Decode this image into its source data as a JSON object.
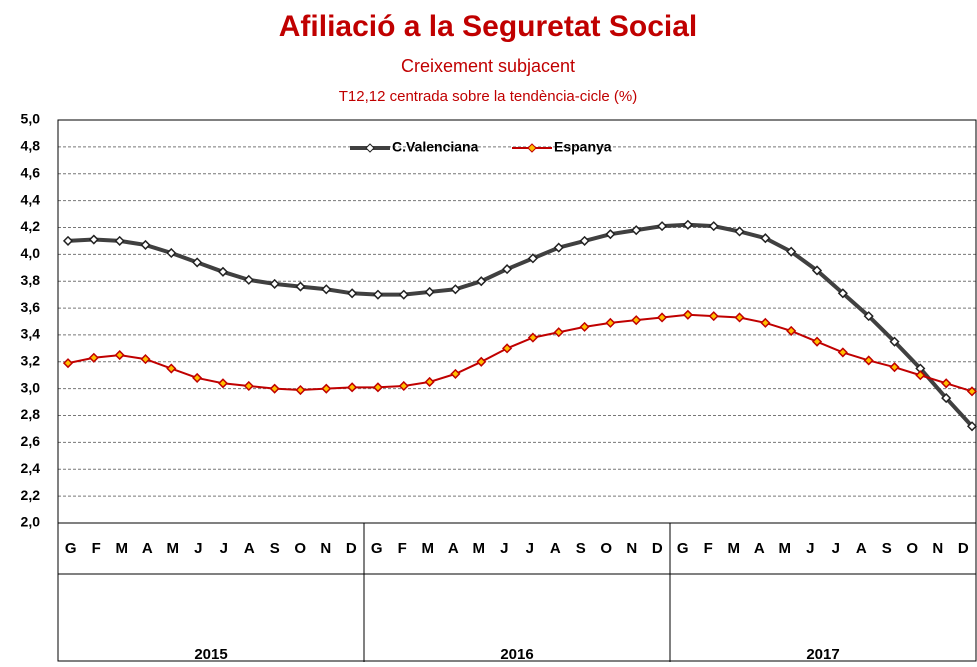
{
  "chart_data": {
    "type": "line",
    "title": "Afiliació a la Seguretat Social",
    "subtitle": "Creixement subjacent",
    "subtitle2": "T12,12 centrada sobre la tendència-cicle (%)",
    "categories": [
      "G",
      "F",
      "M",
      "A",
      "M",
      "J",
      "J",
      "A",
      "S",
      "O",
      "N",
      "D",
      "G",
      "F",
      "M",
      "A",
      "M",
      "J",
      "J",
      "A",
      "S",
      "O",
      "N",
      "D",
      "G",
      "F",
      "M",
      "A",
      "M",
      "J",
      "J",
      "A",
      "S",
      "O",
      "N",
      "D"
    ],
    "years": [
      "2015",
      "2016",
      "2017"
    ],
    "series": [
      {
        "name": "C.Valenciana",
        "color": "#404040",
        "values": [
          4.1,
          4.11,
          4.1,
          4.07,
          4.01,
          3.94,
          3.87,
          3.81,
          3.78,
          3.76,
          3.74,
          3.71,
          3.7,
          3.7,
          3.72,
          3.74,
          3.8,
          3.89,
          3.97,
          4.05,
          4.1,
          4.15,
          4.18,
          4.21,
          4.22,
          4.21,
          4.17,
          4.12,
          4.02,
          3.88,
          3.71,
          3.54,
          3.35,
          3.15,
          2.93,
          2.72
        ]
      },
      {
        "name": "Espanya",
        "color": "#c00000",
        "values": [
          3.19,
          3.23,
          3.25,
          3.22,
          3.15,
          3.08,
          3.04,
          3.02,
          3.0,
          2.99,
          3.0,
          3.01,
          3.01,
          3.02,
          3.05,
          3.11,
          3.2,
          3.3,
          3.38,
          3.42,
          3.46,
          3.49,
          3.51,
          3.53,
          3.55,
          3.54,
          3.53,
          3.49,
          3.43,
          3.35,
          3.27,
          3.21,
          3.16,
          3.1,
          3.04,
          2.98
        ]
      }
    ],
    "ylim": [
      2.0,
      5.0
    ],
    "yticks": [
      {
        "value": 2.0,
        "label": "2,0"
      },
      {
        "value": 2.2,
        "label": "2,2"
      },
      {
        "value": 2.4,
        "label": "2,4"
      },
      {
        "value": 2.6,
        "label": "2,6"
      },
      {
        "value": 2.8,
        "label": "2,8"
      },
      {
        "value": 3.0,
        "label": "3,0"
      },
      {
        "value": 3.2,
        "label": "3,2"
      },
      {
        "value": 3.4,
        "label": "3,4"
      },
      {
        "value": 3.6,
        "label": "3,6"
      },
      {
        "value": 3.8,
        "label": "3,8"
      },
      {
        "value": 4.0,
        "label": "4,0"
      },
      {
        "value": 4.2,
        "label": "4,2"
      },
      {
        "value": 4.4,
        "label": "4,4"
      },
      {
        "value": 4.6,
        "label": "4,6"
      },
      {
        "value": 4.8,
        "label": "4,8"
      },
      {
        "value": 5.0,
        "label": "5,0"
      }
    ],
    "grid": true
  }
}
